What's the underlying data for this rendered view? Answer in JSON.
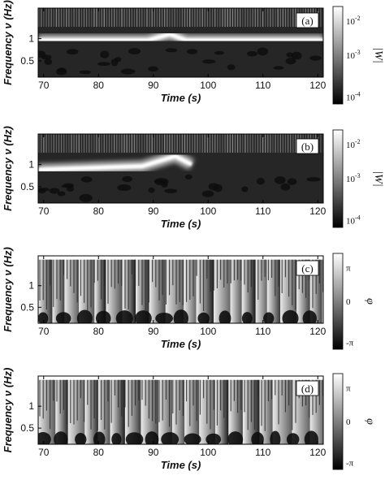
{
  "chart_data": [
    {
      "type": "heatmap",
      "panel_label": "(a)",
      "quantity": "wavelet modulus",
      "xlabel": "Time (s)",
      "ylabel": "Frequency ν (Hz)",
      "xlim": [
        69,
        121
      ],
      "ylim": [
        0.3,
        2.6
      ],
      "yscale": "log",
      "x_ticks": [
        "70",
        "80",
        "90",
        "100",
        "110",
        "120"
      ],
      "y_ticks": [
        "0.5",
        "1"
      ],
      "colorbar": {
        "label": "|W|",
        "scale": "log",
        "ticks": [
          {
            "base": "10",
            "exp": "-2"
          },
          {
            "base": "10",
            "exp": "-3"
          },
          {
            "base": "10",
            "exp": "-4"
          }
        ]
      },
      "ridge": [
        {
          "x": 69,
          "y": 0.95
        },
        {
          "x": 89,
          "y": 0.95
        },
        {
          "x": 93,
          "y": 1.15
        },
        {
          "x": 96,
          "y": 0.95
        },
        {
          "x": 121,
          "y": 0.95
        }
      ]
    },
    {
      "type": "heatmap",
      "panel_label": "(b)",
      "quantity": "wavelet modulus",
      "xlabel": "Time (s)",
      "ylabel": "Frequency ν (Hz)",
      "xlim": [
        69,
        121
      ],
      "ylim": [
        0.3,
        2.6
      ],
      "yscale": "log",
      "x_ticks": [
        "70",
        "80",
        "90",
        "100",
        "110",
        "120"
      ],
      "y_ticks": [
        "0.5",
        "1"
      ],
      "colorbar": {
        "label": "|W|",
        "scale": "log",
        "ticks": [
          {
            "base": "10",
            "exp": "-2"
          },
          {
            "base": "10",
            "exp": "-3"
          },
          {
            "base": "10",
            "exp": "-4"
          }
        ]
      },
      "ridge": [
        {
          "x": 69,
          "y": 0.85
        },
        {
          "x": 88,
          "y": 0.95
        },
        {
          "x": 94,
          "y": 1.3
        },
        {
          "x": 97,
          "y": 1.0
        }
      ]
    },
    {
      "type": "heatmap",
      "panel_label": "(c)",
      "quantity": "wavelet phase",
      "xlabel": "Time (s)",
      "ylabel": "Frequency ν (Hz)",
      "xlim": [
        69,
        121
      ],
      "ylim": [
        0.3,
        2.6
      ],
      "yscale": "log",
      "x_ticks": [
        "70",
        "80",
        "90",
        "100",
        "110",
        "120"
      ],
      "y_ticks": [
        "0.5",
        "1"
      ],
      "colorbar": {
        "label": "φ",
        "scale": "linear",
        "range": [
          "-π",
          "π"
        ],
        "ticks": [
          "π",
          "0",
          "-π"
        ]
      }
    },
    {
      "type": "heatmap",
      "panel_label": "(d)",
      "quantity": "wavelet phase",
      "xlabel": "Time (s)",
      "ylabel": "Frequency ν (Hz)",
      "xlim": [
        69,
        121
      ],
      "ylim": [
        0.3,
        2.6
      ],
      "yscale": "log",
      "x_ticks": [
        "70",
        "80",
        "90",
        "100",
        "110",
        "120"
      ],
      "y_ticks": [
        "0.5",
        "1"
      ],
      "colorbar": {
        "label": "φ",
        "scale": "linear",
        "range": [
          "-π",
          "π"
        ],
        "ticks": [
          "π",
          "0",
          "-π"
        ]
      }
    }
  ]
}
